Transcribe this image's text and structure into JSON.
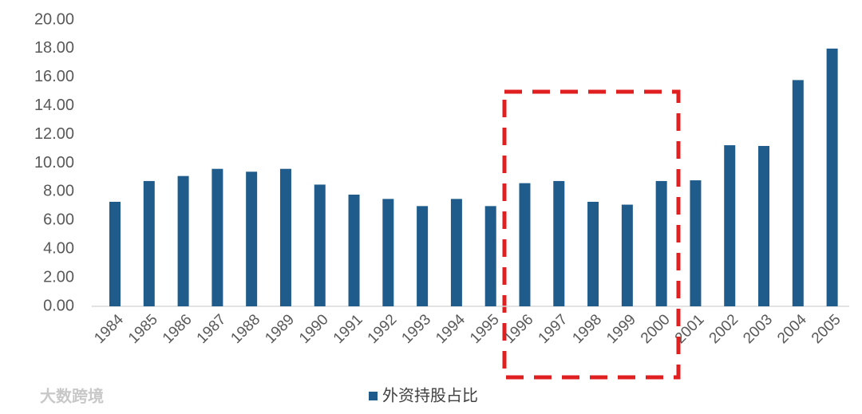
{
  "chart_data": {
    "type": "bar",
    "categories": [
      "1984",
      "1985",
      "1986",
      "1987",
      "1988",
      "1989",
      "1990",
      "1991",
      "1992",
      "1993",
      "1994",
      "1995",
      "1996",
      "1997",
      "1998",
      "1999",
      "2000",
      "2001",
      "2002",
      "2003",
      "2004",
      "2005"
    ],
    "series": [
      {
        "name": "外资持股占比",
        "color": "#1f5c8b",
        "values": [
          7.3,
          8.75,
          9.1,
          9.6,
          9.4,
          9.6,
          8.5,
          7.8,
          7.5,
          7.0,
          7.5,
          7.0,
          8.6,
          8.75,
          7.3,
          7.1,
          8.75,
          8.8,
          11.25,
          11.2,
          15.8,
          18.0
        ]
      }
    ],
    "ylim": [
      0,
      20
    ],
    "yticks": [
      {
        "value": 0,
        "label": "0.00"
      },
      {
        "value": 2,
        "label": "2.00"
      },
      {
        "value": 4,
        "label": "4.00"
      },
      {
        "value": 6,
        "label": "6.00"
      },
      {
        "value": 8,
        "label": "8.00"
      },
      {
        "value": 10,
        "label": "10.00"
      },
      {
        "value": 12,
        "label": "12.00"
      },
      {
        "value": 14,
        "label": "14.00"
      },
      {
        "value": 16,
        "label": "16.00"
      },
      {
        "value": 18,
        "label": "18.00"
      },
      {
        "value": 20,
        "label": "20.00"
      }
    ],
    "grid": false,
    "watermark": "大数跨境"
  }
}
